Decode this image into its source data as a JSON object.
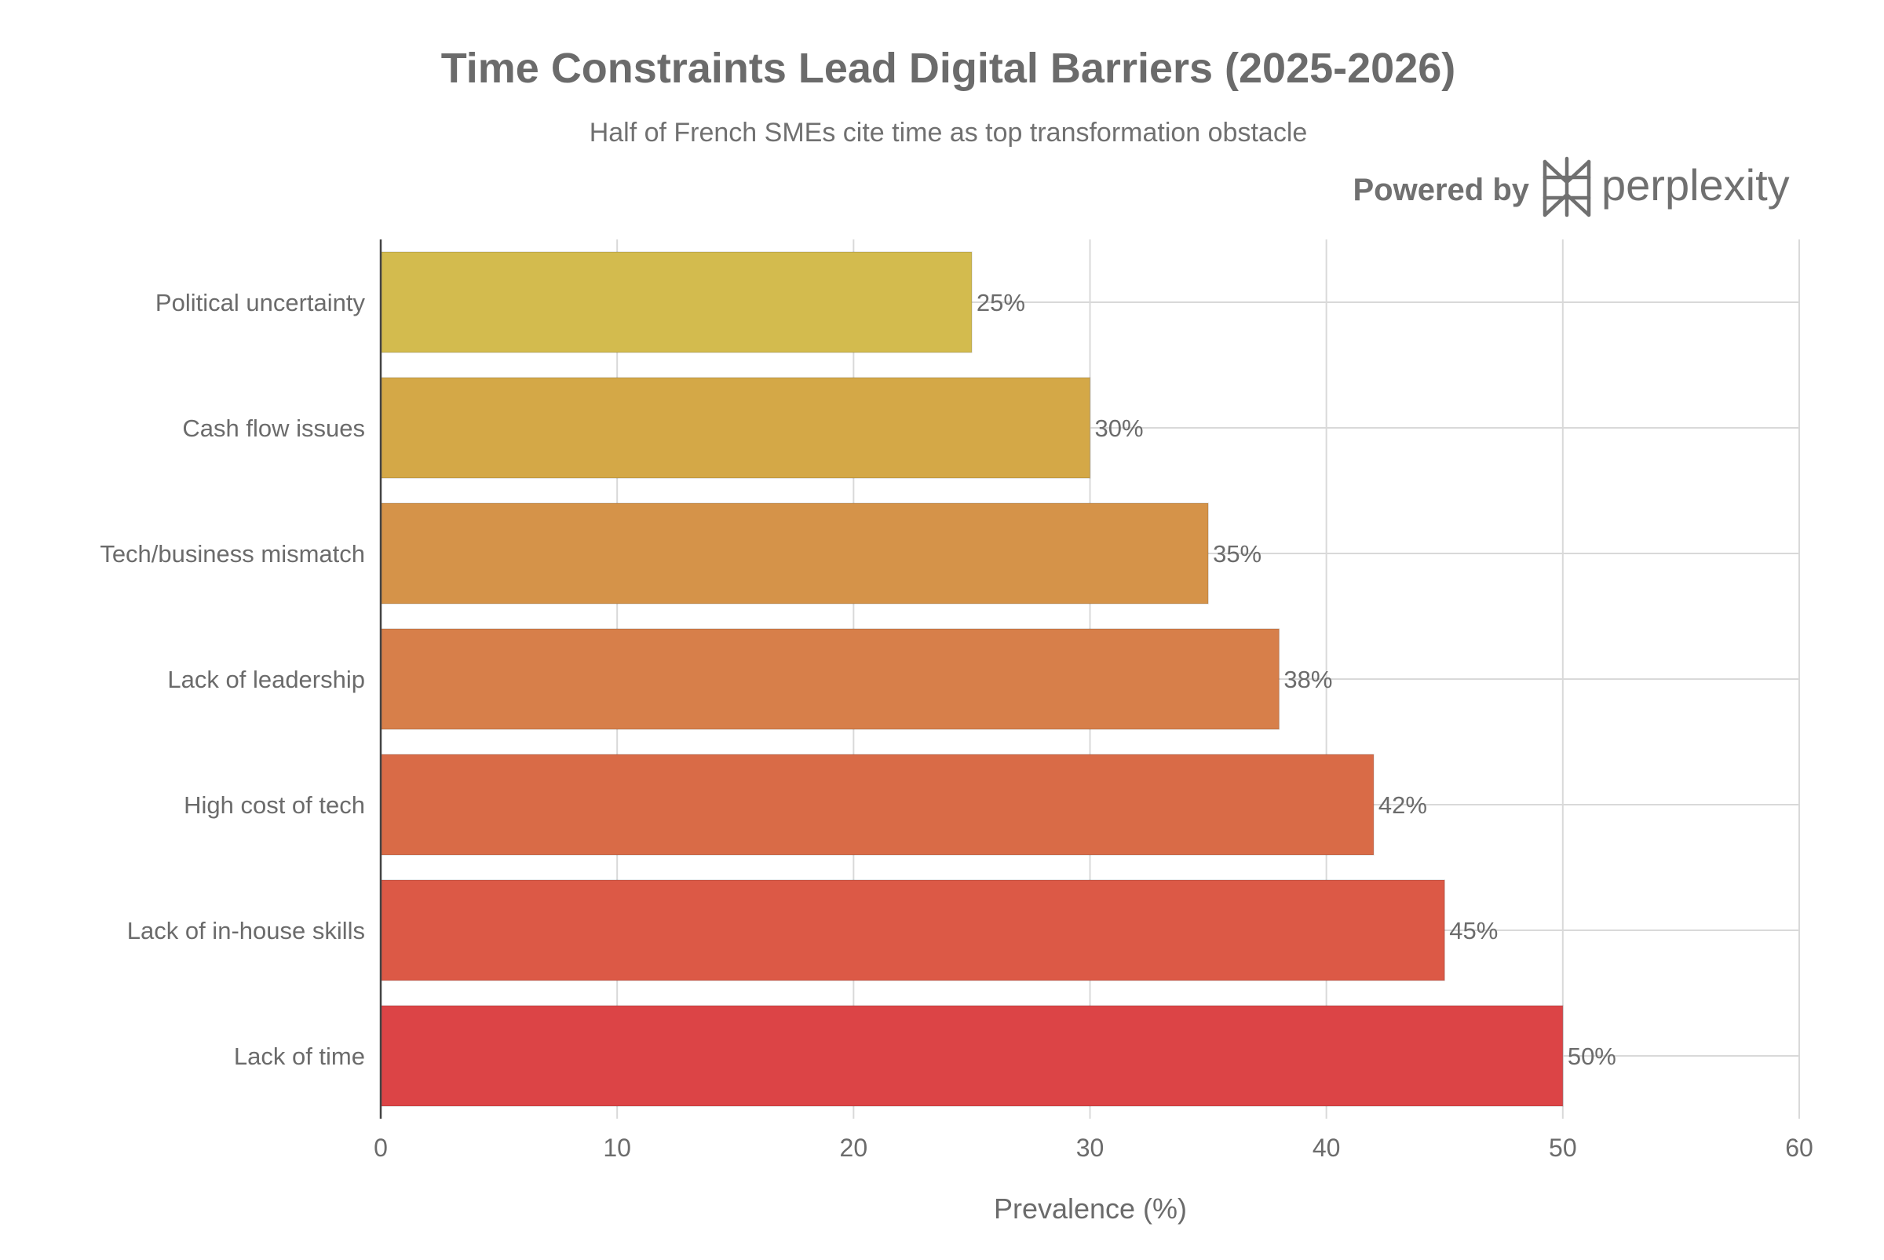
{
  "chart_data": {
    "type": "bar",
    "orientation": "horizontal",
    "title": "Time Constraints Lead Digital Barriers (2025-2026)",
    "subtitle": "Half of French SMEs cite time as top transformation obstacle",
    "xlabel": "Prevalence (%)",
    "ylabel": "",
    "xlim": [
      0,
      60
    ],
    "xticks": [
      0,
      10,
      20,
      30,
      40,
      50,
      60
    ],
    "grid": true,
    "categories": [
      "Political uncertainty",
      "Cash flow issues",
      "Tech/business mismatch",
      "Lack of leadership",
      "High cost of tech",
      "Lack of in-house skills",
      "Lack of time"
    ],
    "values": [
      25,
      30,
      35,
      38,
      42,
      45,
      50
    ],
    "value_labels": [
      "25%",
      "30%",
      "35%",
      "38%",
      "42%",
      "45%",
      "50%"
    ],
    "colors": [
      "#d3bb4e",
      "#d4a847",
      "#d59349",
      "#d77f4a",
      "#d96b47",
      "#dc5946",
      "#dc4446"
    ]
  },
  "branding": {
    "powered_by": "Powered by",
    "brand_name": "perplexity"
  }
}
